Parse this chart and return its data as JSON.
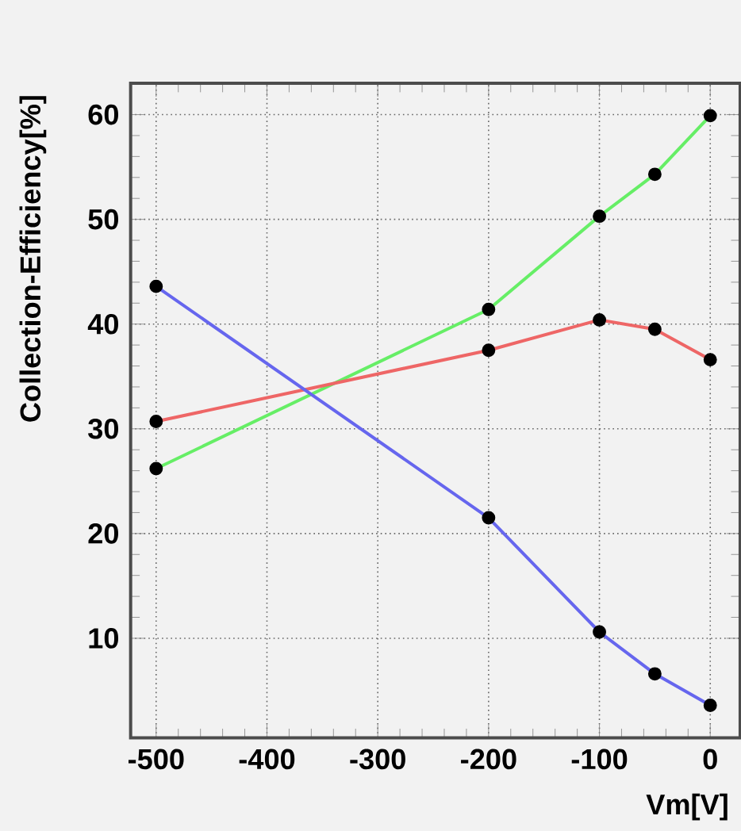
{
  "chart_data": {
    "type": "line",
    "xlabel": "Vm[V]",
    "ylabel": "Collection-Efficiency[%]",
    "x": [
      -500,
      -200,
      -100,
      -50,
      0
    ],
    "series": [
      {
        "color": "#66ee66",
        "values": [
          26.2,
          41.4,
          50.3,
          54.3,
          59.9
        ]
      },
      {
        "color": "#ee6666",
        "values": [
          30.7,
          37.5,
          40.4,
          39.5,
          36.6
        ]
      },
      {
        "color": "#6666ee",
        "values": [
          43.6,
          21.5,
          10.6,
          6.6,
          3.6
        ]
      }
    ],
    "xlim": [
      -523,
      27
    ],
    "ylim": [
      0.5,
      63
    ],
    "xticks": [
      -500,
      -400,
      -300,
      -200,
      -100,
      0
    ],
    "yticks": [
      10,
      20,
      30,
      40,
      50,
      60
    ],
    "grid": true,
    "marker": "circle",
    "line_style": "solid"
  }
}
